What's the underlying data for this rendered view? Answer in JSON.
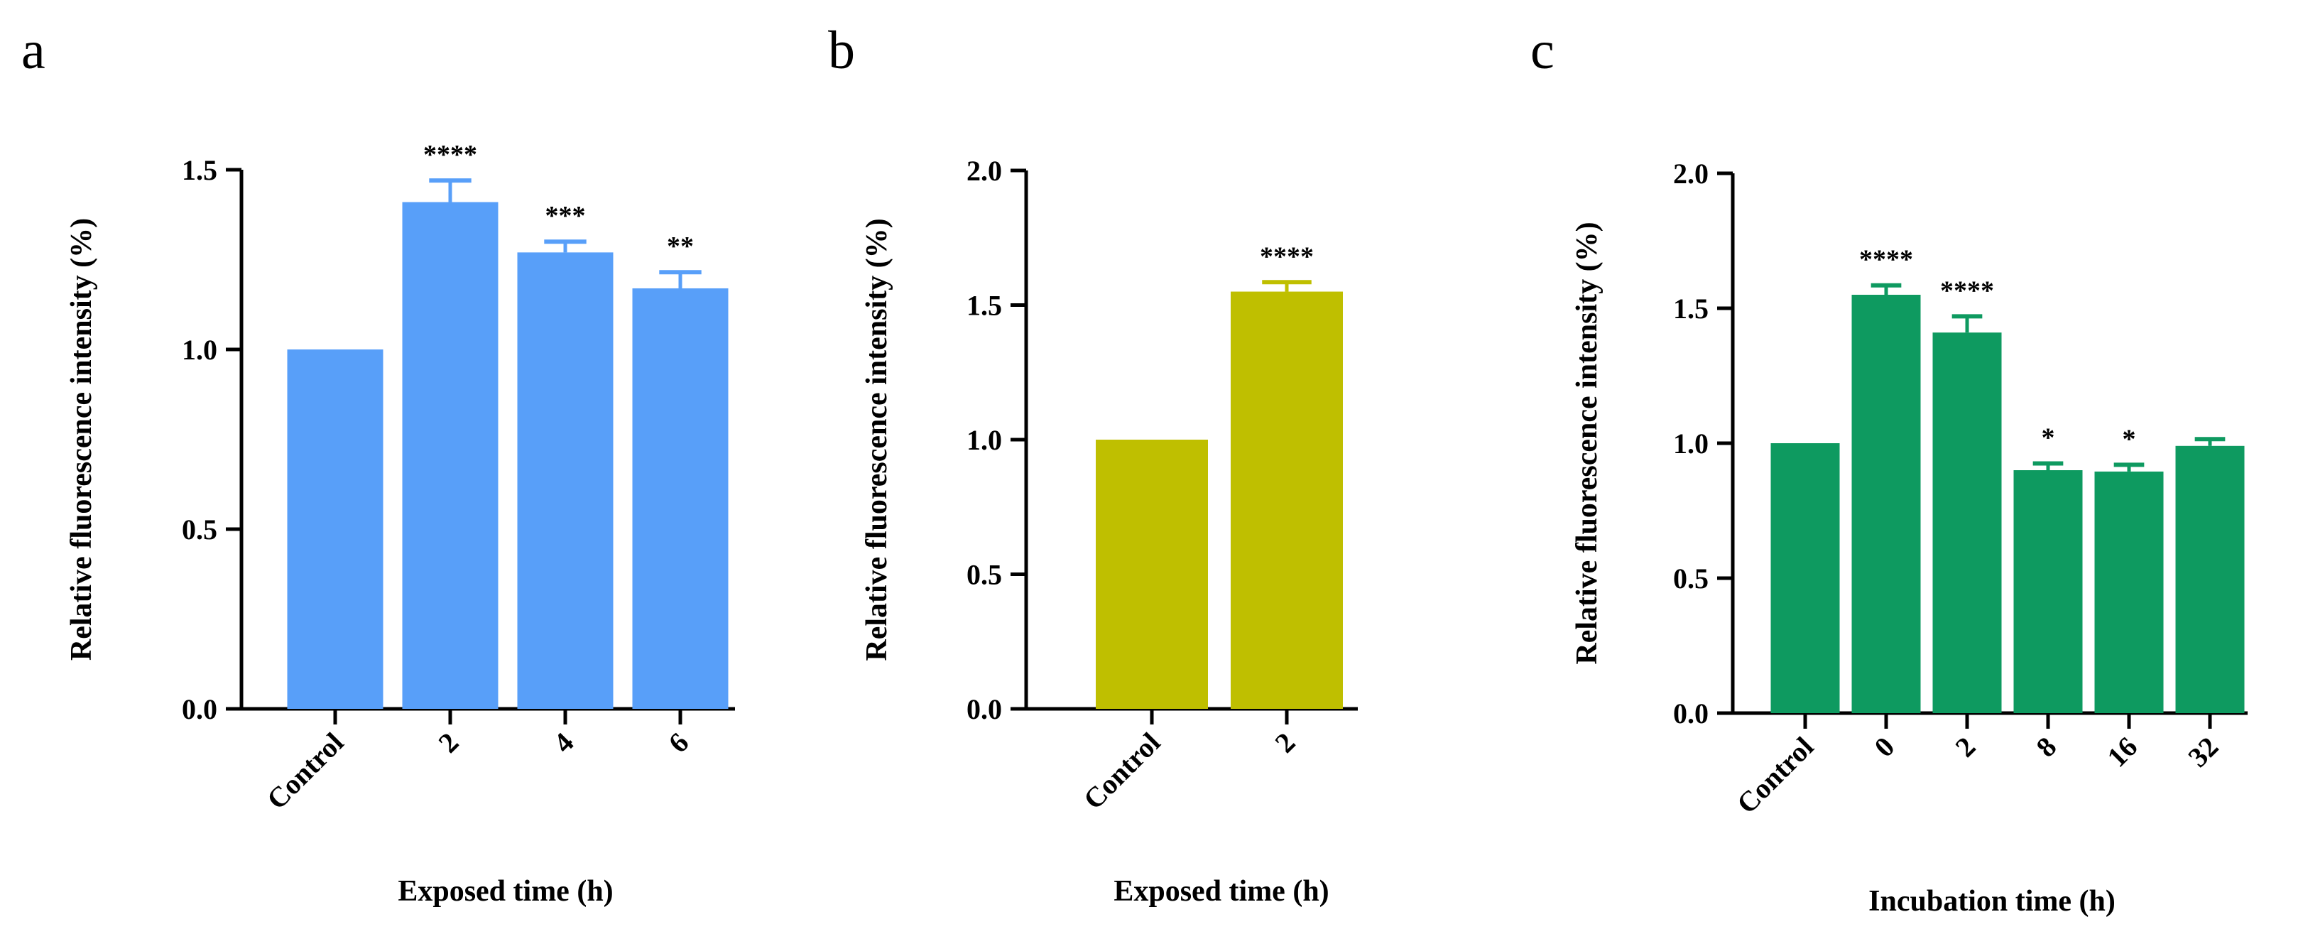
{
  "chart_data": [
    {
      "panel": "a",
      "type": "bar",
      "color": "#589ff9",
      "ylabel": "Relative fluorescence intensity (%)",
      "xlabel": "Exposed time (h)",
      "ylim": [
        0,
        1.5
      ],
      "yticks": [
        "0.0",
        "0.5",
        "1.0",
        "1.5"
      ],
      "categories": [
        "Control",
        "2",
        "4",
        "6"
      ],
      "values": [
        1.0,
        1.41,
        1.27,
        1.17
      ],
      "errors": [
        0,
        0.06,
        0.03,
        0.045
      ],
      "significance": [
        "",
        "****",
        "***",
        "**"
      ]
    },
    {
      "panel": "b",
      "type": "bar",
      "color": "#bfbf00",
      "ylabel": "Relative fluorescence intensity (%)",
      "xlabel": "Exposed time (h)",
      "ylim": [
        0,
        2.0
      ],
      "yticks": [
        "0.0",
        "0.5",
        "1.0",
        "1.5",
        "2.0"
      ],
      "categories": [
        "Control",
        "2"
      ],
      "values": [
        1.0,
        1.55
      ],
      "errors": [
        0,
        0.035
      ],
      "significance": [
        "",
        "****"
      ]
    },
    {
      "panel": "c",
      "type": "bar",
      "color": "#0e9a60",
      "ylabel": "Relative fluorescence intensity (%)",
      "xlabel": "Incubation time (h)",
      "ylim": [
        0,
        2.0
      ],
      "yticks": [
        "0.0",
        "0.5",
        "1.0",
        "1.5",
        "2.0"
      ],
      "categories": [
        "Control",
        "0",
        "2",
        "8",
        "16",
        "32"
      ],
      "values": [
        1.0,
        1.55,
        1.41,
        0.9,
        0.895,
        0.99
      ],
      "errors": [
        0,
        0.035,
        0.06,
        0.025,
        0.025,
        0.025
      ],
      "significance": [
        "",
        "****",
        "****",
        "*",
        "*",
        ""
      ]
    }
  ]
}
